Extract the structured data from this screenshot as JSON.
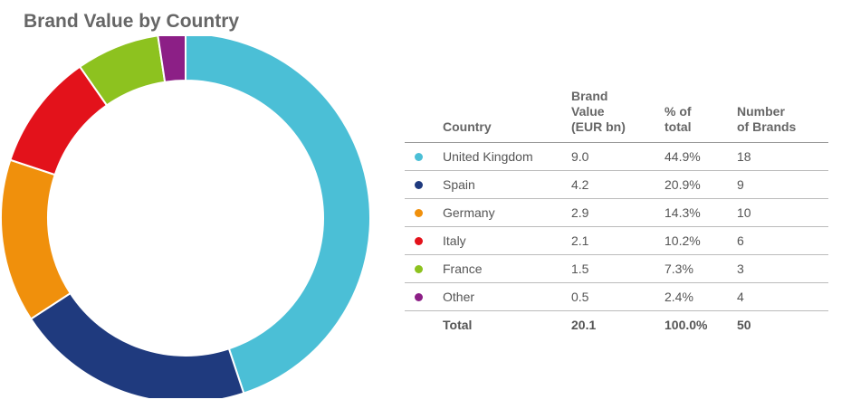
{
  "title": "Brand Value by Country",
  "table": {
    "headers": {
      "country": "Country",
      "value_line1": "Brand",
      "value_line2": "Value",
      "value_line3": "(EUR bn)",
      "pct_line1": "% of",
      "pct_line2": "total",
      "count_line1": "Number",
      "count_line2": "of Brands"
    },
    "rows": [
      {
        "country": "United Kingdom",
        "value": "9.0",
        "pct": "44.9%",
        "count": "18",
        "color": "#4bbfd6"
      },
      {
        "country": "Spain",
        "value": "4.2",
        "pct": "20.9%",
        "count": "9",
        "color": "#1f3a7e"
      },
      {
        "country": "Germany",
        "value": "2.9",
        "pct": "14.3%",
        "count": "10",
        "color": "#f0900c"
      },
      {
        "country": "Italy",
        "value": "2.1",
        "pct": "10.2%",
        "count": "6",
        "color": "#e3121b"
      },
      {
        "country": "France",
        "value": "1.5",
        "pct": "7.3%",
        "count": "3",
        "color": "#8dc21f"
      },
      {
        "country": "Other",
        "value": "0.5",
        "pct": "2.4%",
        "count": "4",
        "color": "#8c1f86"
      }
    ],
    "total": {
      "label": "Total",
      "value": "20.1",
      "pct": "100.0%",
      "count": "50"
    }
  },
  "chart_data": {
    "type": "pie",
    "variant": "donut",
    "title": "Brand Value by Country",
    "categories": [
      "United Kingdom",
      "Spain",
      "Germany",
      "Italy",
      "France",
      "Other"
    ],
    "values": [
      44.9,
      20.9,
      14.3,
      10.2,
      7.3,
      2.4
    ],
    "brand_value_eur_bn": [
      9.0,
      4.2,
      2.9,
      2.1,
      1.5,
      0.5
    ],
    "colors": [
      "#4bbfd6",
      "#1f3a7e",
      "#f0900c",
      "#e3121b",
      "#8dc21f",
      "#8c1f86"
    ],
    "start": "top",
    "direction": "clockwise"
  }
}
